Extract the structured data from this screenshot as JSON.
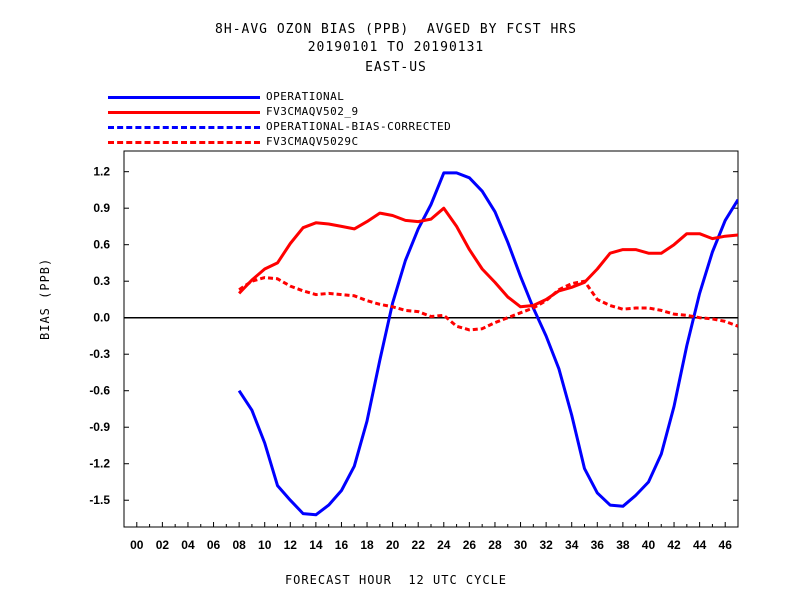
{
  "chart_data": {
    "type": "line",
    "title_lines": [
      "8H-AVG OZON BIAS (PPB)  AVGED BY FCST HRS",
      "20190101 TO 20190131",
      "EAST-US"
    ],
    "xlabel": "FORECAST HOUR  12 UTC CYCLE",
    "ylabel": "BIAS (PPB)",
    "x_ticks": [
      "00",
      "02",
      "04",
      "06",
      "08",
      "10",
      "12",
      "14",
      "16",
      "18",
      "20",
      "22",
      "24",
      "26",
      "28",
      "30",
      "32",
      "34",
      "36",
      "38",
      "40",
      "42",
      "44",
      "46"
    ],
    "xlim": [
      -1,
      47
    ],
    "ylim": [
      -1.72,
      1.37
    ],
    "y_ticks": [
      "1.2",
      "0.9",
      "0.6",
      "0.3",
      "0.0",
      "-0.3",
      "-0.6",
      "-0.9",
      "-1.2",
      "-1.5"
    ],
    "y_tick_values": [
      1.2,
      0.9,
      0.6,
      0.3,
      0.0,
      -0.3,
      -0.6,
      -0.9,
      -1.2,
      -1.5
    ],
    "zero_line": true,
    "legend_position": "top-left",
    "series": [
      {
        "name": "OPERATIONAL",
        "color": "#0000ff",
        "dash": "solid",
        "x": [
          8,
          9,
          10,
          11,
          12,
          13,
          14,
          15,
          16,
          17,
          18,
          19,
          20,
          21,
          22,
          23,
          24,
          25,
          26,
          27,
          28,
          29,
          30,
          31,
          32,
          33,
          34,
          35,
          36,
          37,
          38,
          39,
          40,
          41,
          42,
          43,
          44,
          45,
          46,
          47
        ],
        "values": [
          -0.6,
          -0.76,
          -1.03,
          -1.38,
          -1.5,
          -1.61,
          -1.62,
          -1.54,
          -1.42,
          -1.22,
          -0.85,
          -0.35,
          0.12,
          0.47,
          0.73,
          0.93,
          1.19,
          1.19,
          1.15,
          1.04,
          0.87,
          0.62,
          0.34,
          0.08,
          -0.15,
          -0.42,
          -0.8,
          -1.24,
          -1.44,
          -1.54,
          -1.55,
          -1.46,
          -1.35,
          -1.12,
          -0.73,
          -0.23,
          0.2,
          0.54,
          0.8,
          0.97
        ]
      },
      {
        "name": "FV3CMAQV502_9",
        "color": "#ff0000",
        "dash": "solid",
        "x": [
          8,
          9,
          10,
          11,
          12,
          13,
          14,
          15,
          16,
          17,
          18,
          19,
          20,
          21,
          22,
          23,
          24,
          25,
          26,
          27,
          28,
          29,
          30,
          31,
          32,
          33,
          34,
          35,
          36,
          37,
          38,
          39,
          40,
          41,
          42,
          43,
          44,
          45,
          46,
          47
        ],
        "values": [
          0.2,
          0.31,
          0.4,
          0.45,
          0.61,
          0.74,
          0.78,
          0.77,
          0.75,
          0.73,
          0.79,
          0.86,
          0.84,
          0.8,
          0.79,
          0.81,
          0.9,
          0.75,
          0.56,
          0.4,
          0.29,
          0.17,
          0.09,
          0.1,
          0.15,
          0.22,
          0.25,
          0.29,
          0.4,
          0.53,
          0.56,
          0.56,
          0.53,
          0.53,
          0.6,
          0.69,
          0.69,
          0.65,
          0.67,
          0.68
        ]
      },
      {
        "name": "OPERATIONAL-BIAS-CORRECTED",
        "color": "#0000ff",
        "dash": "dashed",
        "x": [],
        "values": []
      },
      {
        "name": "FV3CMAQV5029C",
        "color": "#ff0000",
        "dash": "dashed",
        "x": [
          8,
          9,
          10,
          11,
          12,
          13,
          14,
          15,
          16,
          17,
          18,
          19,
          20,
          21,
          22,
          23,
          24,
          25,
          26,
          27,
          28,
          29,
          30,
          31,
          32,
          33,
          34,
          35,
          36,
          37,
          38,
          39,
          40,
          41,
          42,
          43,
          44,
          45,
          46,
          47
        ],
        "values": [
          0.23,
          0.3,
          0.33,
          0.32,
          0.26,
          0.22,
          0.19,
          0.2,
          0.19,
          0.18,
          0.14,
          0.11,
          0.09,
          0.06,
          0.05,
          0.01,
          0.02,
          -0.07,
          -0.1,
          -0.09,
          -0.04,
          0.0,
          0.04,
          0.08,
          0.14,
          0.23,
          0.28,
          0.3,
          0.15,
          0.1,
          0.07,
          0.08,
          0.08,
          0.06,
          0.03,
          0.02,
          0.0,
          -0.01,
          -0.03,
          -0.07
        ]
      }
    ]
  }
}
